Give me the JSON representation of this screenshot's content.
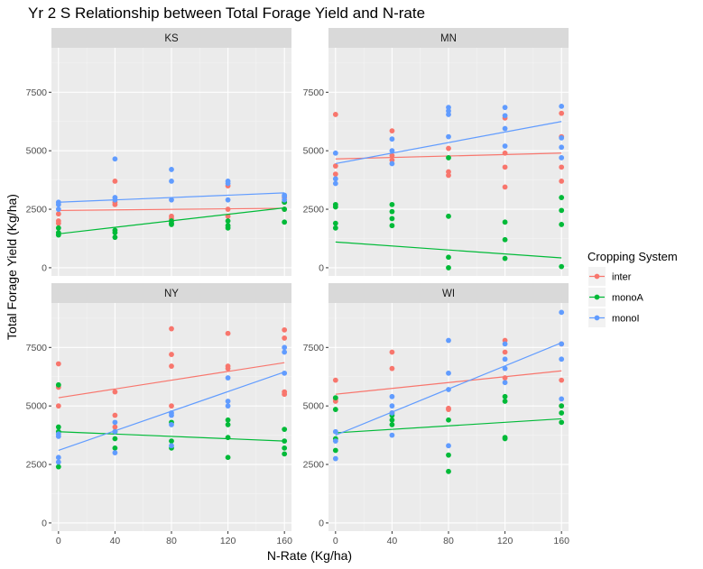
{
  "chart_data": {
    "type": "scatter",
    "title": "Yr 2 S Relationship between Total Forage Yield and N-rate",
    "xlabel": "N-Rate (Kg/ha)",
    "ylabel": "Total Forage Yield (Kg/ha)",
    "x_ticks": [
      0,
      40,
      80,
      120,
      160
    ],
    "y_ticks": [
      0,
      2500,
      5000,
      7500
    ],
    "xlim": [
      -5,
      165
    ],
    "ylim": [
      -350,
      9400
    ],
    "grid": true,
    "legend": {
      "title": "Cropping System",
      "placement": "right",
      "entries": [
        {
          "name": "inter",
          "color": "#F8766D"
        },
        {
          "name": "monoA",
          "color": "#00BA38"
        },
        {
          "name": "monoI",
          "color": "#619CFF"
        }
      ]
    },
    "panels": [
      {
        "facet": "KS",
        "series": [
          {
            "name": "inter",
            "points": [
              [
                0,
                2300
              ],
              [
                0,
                2000
              ],
              [
                0,
                1900
              ],
              [
                40,
                3700
              ],
              [
                40,
                2800
              ],
              [
                40,
                2700
              ],
              [
                80,
                2200
              ],
              [
                80,
                2100
              ],
              [
                80,
                2000
              ],
              [
                120,
                3500
              ],
              [
                120,
                2500
              ],
              [
                120,
                2200
              ],
              [
                160,
                3000
              ],
              [
                160,
                2800
              ],
              [
                160,
                2500
              ]
            ],
            "fit": [
              [
                0,
                2450
              ],
              [
                160,
                2540
              ]
            ]
          },
          {
            "name": "monoA",
            "points": [
              [
                0,
                1700
              ],
              [
                0,
                1500
              ],
              [
                0,
                1400
              ],
              [
                40,
                1600
              ],
              [
                40,
                1500
              ],
              [
                40,
                1300
              ],
              [
                80,
                2000
              ],
              [
                80,
                1900
              ],
              [
                80,
                1850
              ],
              [
                120,
                2000
              ],
              [
                120,
                1800
              ],
              [
                120,
                1700
              ],
              [
                160,
                2800
              ],
              [
                160,
                2500
              ],
              [
                160,
                1950
              ]
            ],
            "fit": [
              [
                0,
                1450
              ],
              [
                160,
                2560
              ]
            ]
          },
          {
            "name": "monoI",
            "points": [
              [
                0,
                2800
              ],
              [
                0,
                2700
              ],
              [
                0,
                2500
              ],
              [
                40,
                4650
              ],
              [
                40,
                3000
              ],
              [
                40,
                2900
              ],
              [
                80,
                4200
              ],
              [
                80,
                3700
              ],
              [
                80,
                2900
              ],
              [
                120,
                3700
              ],
              [
                120,
                3600
              ],
              [
                120,
                2900
              ],
              [
                160,
                3100
              ],
              [
                160,
                3050
              ],
              [
                160,
                2900
              ]
            ],
            "fit": [
              [
                0,
                2800
              ],
              [
                160,
                3200
              ]
            ]
          }
        ]
      },
      {
        "facet": "MN",
        "series": [
          {
            "name": "inter",
            "points": [
              [
                0,
                6550
              ],
              [
                0,
                4350
              ],
              [
                0,
                4000
              ],
              [
                40,
                5850
              ],
              [
                40,
                4800
              ],
              [
                40,
                4600
              ],
              [
                80,
                5100
              ],
              [
                80,
                4100
              ],
              [
                80,
                3950
              ],
              [
                120,
                6400
              ],
              [
                120,
                4900
              ],
              [
                120,
                4300
              ],
              [
                120,
                3450
              ],
              [
                160,
                6600
              ],
              [
                160,
                5600
              ],
              [
                160,
                4300
              ],
              [
                160,
                3700
              ]
            ],
            "fit": [
              [
                0,
                4650
              ],
              [
                160,
                4900
              ]
            ]
          },
          {
            "name": "monoA",
            "points": [
              [
                0,
                2700
              ],
              [
                0,
                2600
              ],
              [
                0,
                1900
              ],
              [
                0,
                1700
              ],
              [
                40,
                2700
              ],
              [
                40,
                2400
              ],
              [
                40,
                2100
              ],
              [
                40,
                1800
              ],
              [
                80,
                4700
              ],
              [
                80,
                2200
              ],
              [
                80,
                450
              ],
              [
                80,
                0
              ],
              [
                120,
                1950
              ],
              [
                120,
                1200
              ],
              [
                120,
                400
              ],
              [
                160,
                3000
              ],
              [
                160,
                2450
              ],
              [
                160,
                1850
              ],
              [
                160,
                50
              ]
            ],
            "fit": [
              [
                0,
                1100
              ],
              [
                160,
                420
              ]
            ]
          },
          {
            "name": "monoI",
            "points": [
              [
                0,
                4900
              ],
              [
                0,
                3800
              ],
              [
                0,
                3600
              ],
              [
                40,
                5500
              ],
              [
                40,
                5000
              ],
              [
                40,
                4450
              ],
              [
                80,
                6850
              ],
              [
                80,
                6700
              ],
              [
                80,
                6550
              ],
              [
                80,
                5600
              ],
              [
                120,
                6850
              ],
              [
                120,
                6500
              ],
              [
                120,
                5950
              ],
              [
                120,
                5200
              ],
              [
                160,
                6900
              ],
              [
                160,
                5550
              ],
              [
                160,
                5150
              ],
              [
                160,
                4700
              ]
            ],
            "fit": [
              [
                0,
                4450
              ],
              [
                160,
                6250
              ]
            ]
          }
        ]
      },
      {
        "facet": "NY",
        "series": [
          {
            "name": "inter",
            "points": [
              [
                0,
                6800
              ],
              [
                0,
                5800
              ],
              [
                0,
                5000
              ],
              [
                40,
                5600
              ],
              [
                40,
                4600
              ],
              [
                40,
                4100
              ],
              [
                80,
                8300
              ],
              [
                80,
                7200
              ],
              [
                80,
                6700
              ],
              [
                80,
                5000
              ],
              [
                120,
                8100
              ],
              [
                120,
                6700
              ],
              [
                120,
                6600
              ],
              [
                160,
                8250
              ],
              [
                160,
                7900
              ],
              [
                160,
                5600
              ],
              [
                160,
                5500
              ]
            ],
            "fit": [
              [
                0,
                5350
              ],
              [
                160,
                6850
              ]
            ]
          },
          {
            "name": "monoA",
            "points": [
              [
                0,
                5900
              ],
              [
                0,
                4100
              ],
              [
                0,
                3900
              ],
              [
                0,
                2400
              ],
              [
                40,
                3900
              ],
              [
                40,
                3600
              ],
              [
                40,
                3200
              ],
              [
                80,
                4300
              ],
              [
                80,
                3500
              ],
              [
                80,
                3200
              ],
              [
                120,
                4400
              ],
              [
                120,
                4200
              ],
              [
                120,
                3650
              ],
              [
                120,
                2800
              ],
              [
                160,
                4000
              ],
              [
                160,
                3500
              ],
              [
                160,
                3200
              ],
              [
                160,
                2950
              ]
            ],
            "fit": [
              [
                0,
                3900
              ],
              [
                160,
                3500
              ]
            ]
          },
          {
            "name": "monoI",
            "points": [
              [
                0,
                3800
              ],
              [
                0,
                3700
              ],
              [
                0,
                2800
              ],
              [
                0,
                2600
              ],
              [
                40,
                4300
              ],
              [
                40,
                3900
              ],
              [
                40,
                3000
              ],
              [
                80,
                4700
              ],
              [
                80,
                4600
              ],
              [
                80,
                4200
              ],
              [
                80,
                3300
              ],
              [
                120,
                6200
              ],
              [
                120,
                5200
              ],
              [
                120,
                5000
              ],
              [
                160,
                7500
              ],
              [
                160,
                7300
              ],
              [
                160,
                6400
              ]
            ],
            "fit": [
              [
                0,
                3100
              ],
              [
                160,
                6450
              ]
            ]
          }
        ]
      },
      {
        "facet": "WI",
        "series": [
          {
            "name": "inter",
            "points": [
              [
                0,
                6100
              ],
              [
                0,
                5300
              ],
              [
                0,
                5200
              ],
              [
                40,
                7300
              ],
              [
                40,
                6600
              ],
              [
                40,
                4700
              ],
              [
                80,
                4900
              ],
              [
                80,
                4850
              ],
              [
                120,
                7800
              ],
              [
                120,
                7300
              ],
              [
                120,
                6200
              ],
              [
                160,
                7650
              ],
              [
                160,
                6100
              ],
              [
                160,
                5000
              ]
            ],
            "fit": [
              [
                0,
                5500
              ],
              [
                160,
                6500
              ]
            ]
          },
          {
            "name": "monoA",
            "points": [
              [
                0,
                5350
              ],
              [
                0,
                4850
              ],
              [
                0,
                3600
              ],
              [
                0,
                3100
              ],
              [
                40,
                4600
              ],
              [
                40,
                4400
              ],
              [
                40,
                4200
              ],
              [
                80,
                4400
              ],
              [
                80,
                2900
              ],
              [
                80,
                2200
              ],
              [
                120,
                5400
              ],
              [
                120,
                5200
              ],
              [
                120,
                3650
              ],
              [
                120,
                3600
              ],
              [
                160,
                5000
              ],
              [
                160,
                4700
              ],
              [
                160,
                4300
              ]
            ],
            "fit": [
              [
                0,
                3850
              ],
              [
                160,
                4450
              ]
            ]
          },
          {
            "name": "monoI",
            "points": [
              [
                0,
                3900
              ],
              [
                0,
                3500
              ],
              [
                0,
                2750
              ],
              [
                40,
                5400
              ],
              [
                40,
                5000
              ],
              [
                40,
                4700
              ],
              [
                40,
                3750
              ],
              [
                80,
                7800
              ],
              [
                80,
                6400
              ],
              [
                80,
                5700
              ],
              [
                80,
                3300
              ],
              [
                120,
                7650
              ],
              [
                120,
                7000
              ],
              [
                120,
                6600
              ],
              [
                120,
                6000
              ],
              [
                160,
                9000
              ],
              [
                160,
                7650
              ],
              [
                160,
                7000
              ],
              [
                160,
                5300
              ]
            ],
            "fit": [
              [
                0,
                3750
              ],
              [
                160,
                7700
              ]
            ]
          }
        ]
      }
    ]
  }
}
